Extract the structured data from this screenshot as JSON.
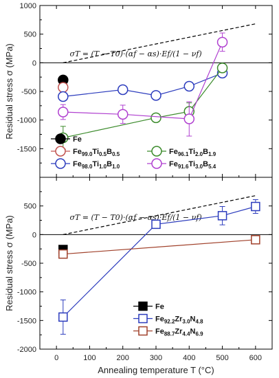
{
  "chart_data": [
    {
      "type": "scatter",
      "ylabel": "Residual stress σ (MPa)",
      "ylim": [
        -2000,
        1000
      ],
      "xlim": [
        -50,
        650
      ],
      "xticks": [
        0,
        100,
        200,
        300,
        400,
        500,
        600
      ],
      "yticks": [
        1000,
        500,
        0,
        -500,
        -1000,
        -1500
      ],
      "yticks_labels": [
        "1000",
        "500",
        "0",
        "-500",
        "-1000",
        "-1500"
      ],
      "formula": "σT = (T − T0)·(αf − αs)·Ef/(1 − νf)",
      "formula_line": {
        "x": [
          20,
          600
        ],
        "y": [
          0,
          680
        ]
      },
      "zero_line": true,
      "legend": [
        {
          "label": "Fe",
          "color": "#000000",
          "marker": "circle-filled",
          "order": 0
        },
        {
          "label": "Fe99.0Ti0.5B0.5",
          "color": "#c0504d",
          "marker": "circle-open",
          "order": 1
        },
        {
          "label": "Fe98.0Ti1.0B1.0",
          "color": "#2b3bbd",
          "marker": "circle-open",
          "order": 2
        },
        {
          "label": "Fe96.1Ti2.0B1.9",
          "color": "#3a8a2a",
          "marker": "circle-open",
          "order": 3
        },
        {
          "label": "Fe91.6Ti3.0B5.4",
          "color": "#b040d0",
          "marker": "circle-open",
          "order": 4
        }
      ],
      "series": [
        {
          "name": "Fe",
          "color": "#000000",
          "marker": "circle-filled",
          "x": [
            20
          ],
          "y": [
            -300
          ],
          "err": [
            0
          ]
        },
        {
          "name": "Fe99.0Ti0.5B0.5",
          "color": "#c0504d",
          "marker": "circle-open",
          "x": [
            20
          ],
          "y": [
            -430
          ],
          "err": [
            60
          ]
        },
        {
          "name": "Fe98.0Ti1.0B1.0",
          "color": "#2b3bbd",
          "marker": "circle-open",
          "x": [
            20,
            200,
            300,
            400,
            500
          ],
          "y": [
            -590,
            -470,
            -570,
            -410,
            -180
          ],
          "err": [
            60,
            70,
            60,
            50,
            40
          ]
        },
        {
          "name": "Fe96.1Ti2.0B1.9",
          "color": "#3a8a2a",
          "marker": "circle-open",
          "x": [
            20,
            300,
            400,
            500
          ],
          "y": [
            -1310,
            -960,
            -850,
            -90
          ],
          "err": [
            200,
            60,
            150,
            70
          ]
        },
        {
          "name": "Fe91.6Ti3.0B5.4",
          "color": "#b040d0",
          "marker": "circle-open",
          "x": [
            20,
            200,
            400,
            500
          ],
          "y": [
            -860,
            -900,
            -980,
            360
          ],
          "err": [
            130,
            160,
            300,
            160
          ]
        }
      ]
    },
    {
      "type": "scatter",
      "ylabel": "Residual stress σ (MPa)",
      "xlabel": "Annealing temperature T (°C)",
      "ylim": [
        -2000,
        1000
      ],
      "xlim": [
        -50,
        650
      ],
      "xticks": [
        0,
        100,
        200,
        300,
        400,
        500,
        600
      ],
      "xticks_labels": [
        "0",
        "100",
        "200",
        "300",
        "400",
        "500",
        "600"
      ],
      "yticks": [
        500,
        0,
        -500,
        -1000,
        -1500,
        -2000
      ],
      "yticks_labels": [
        "500",
        "0",
        "-500",
        "-1000",
        "-1500",
        "-2000"
      ],
      "formula": "σT = (T − T0)·(αf − αs)·Ef/(1 − νf)",
      "formula_line": {
        "x": [
          20,
          600
        ],
        "y": [
          0,
          680
        ]
      },
      "zero_line": true,
      "legend": [
        {
          "label": "Fe",
          "color": "#000000",
          "marker": "square-filled"
        },
        {
          "label": "Fe92.2Zr3.0N4.8",
          "color": "#2b3bbd",
          "marker": "square-open"
        },
        {
          "label": "Fe88.7Zr4.4N6.9",
          "color": "#a0402a",
          "marker": "square-open"
        }
      ],
      "series": [
        {
          "name": "Fe",
          "color": "#000000",
          "marker": "square-filled",
          "x": [
            20
          ],
          "y": [
            -260
          ],
          "err": [
            0
          ]
        },
        {
          "name": "Fe92.2Zr3.0N4.8",
          "color": "#2b3bbd",
          "marker": "square-open",
          "x": [
            20,
            300,
            500,
            600
          ],
          "y": [
            -1440,
            180,
            330,
            490
          ],
          "err": [
            300,
            60,
            160,
            120
          ]
        },
        {
          "name": "Fe88.7Zr4.4N6.9",
          "color": "#a0402a",
          "marker": "square-open",
          "x": [
            20,
            600
          ],
          "y": [
            -340,
            -90
          ],
          "err": [
            50,
            40
          ]
        }
      ]
    }
  ]
}
